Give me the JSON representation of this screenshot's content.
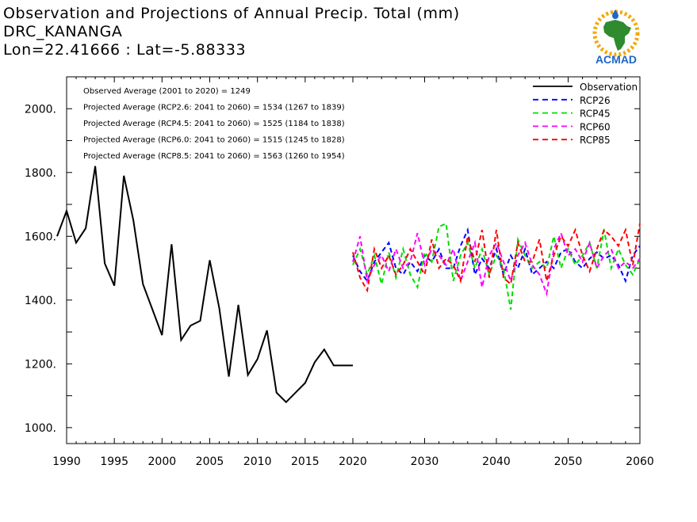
{
  "header": {
    "title_line1": "Observation and Projections of Annual Precip. Total (mm)",
    "title_line2": "DRC_KANANGA",
    "title_line3": "Lon=22.41666 : Lat=-5.88333"
  },
  "logo": {
    "text": "ACMAD",
    "icon": "africa-map-logo-icon"
  },
  "colors": {
    "observation": "#000000",
    "rcp26": "#0000ff",
    "rcp45": "#00dd00",
    "rcp60": "#ff00ff",
    "rcp85": "#ff0000"
  },
  "chart_data": {
    "type": "line",
    "xlim": [
      1990,
      2060
    ],
    "ylim": [
      950,
      2100
    ],
    "x_tick_labels": [
      {
        "x": 1990,
        "label": "1990"
      },
      {
        "x": 1995,
        "label": "1995"
      },
      {
        "x": 2000,
        "label": "2000"
      },
      {
        "x": 2005,
        "label": "2005"
      },
      {
        "x": 2010,
        "label": "2010"
      },
      {
        "x": 2015,
        "label": "2015"
      },
      {
        "x": 2020,
        "label": "2020"
      },
      {
        "x": 2030,
        "label": "2030"
      },
      {
        "x": 2040,
        "label": "2040"
      },
      {
        "x": 2050,
        "label": "2050"
      },
      {
        "x": 2060,
        "label": "2060"
      }
    ],
    "y_tick_labels": [
      {
        "y": 1000,
        "label": "1000."
      },
      {
        "y": 1200,
        "label": "1200."
      },
      {
        "y": 1400,
        "label": "1400."
      },
      {
        "y": 1600,
        "label": "1600."
      },
      {
        "y": 1800,
        "label": "1800."
      },
      {
        "y": 2000,
        "label": "2000."
      }
    ],
    "annotations": [
      "Observed Average (2001 to 2020) = 1249",
      "Projected Average (RCP2.6: 2041 to 2060) = 1534 (1267 to 1839)",
      "Projected Average (RCP4.5: 2041 to 2060) = 1525 (1184 to 1838)",
      "Projected Average (RCP6.0: 2041 to 2060) = 1515 (1245 to 1828)",
      "Projected Average (RCP8.5: 2041 to 2060) = 1563 (1260 to 1954)"
    ],
    "legend_position": "top-right",
    "series": [
      {
        "name": "Observation",
        "style": "solid",
        "color": "#000000",
        "x": [
          1989,
          1990,
          1991,
          1992,
          1993,
          1994,
          1995,
          1996,
          1997,
          1998,
          1999,
          2000,
          2001,
          2002,
          2003,
          2004,
          2005,
          2006,
          2007,
          2008,
          2009,
          2010,
          2011,
          2012,
          2013,
          2014,
          2015,
          2016,
          2017,
          2018,
          2019,
          2020
        ],
        "y": [
          1600,
          1680,
          1580,
          1625,
          1820,
          1515,
          1445,
          1790,
          1650,
          1450,
          1370,
          1290,
          1575,
          1275,
          1320,
          1335,
          1525,
          1375,
          1160,
          1385,
          1165,
          1215,
          1305,
          1110,
          1080,
          1110,
          1140,
          1205,
          1245,
          1195,
          1195,
          1195
        ]
      },
      {
        "name": "RCP26",
        "style": "dashed",
        "color": "#0000ff",
        "x": [
          2020,
          2021,
          2022,
          2023,
          2024,
          2025,
          2026,
          2027,
          2028,
          2029,
          2030,
          2031,
          2032,
          2033,
          2034,
          2035,
          2036,
          2037,
          2038,
          2039,
          2040,
          2041,
          2042,
          2043,
          2044,
          2045,
          2046,
          2047,
          2048,
          2049,
          2050,
          2051,
          2052,
          2053,
          2054,
          2055,
          2056,
          2057,
          2058,
          2059,
          2060
        ],
        "y": [
          1540,
          1490,
          1460,
          1520,
          1550,
          1580,
          1500,
          1480,
          1520,
          1490,
          1540,
          1520,
          1560,
          1500,
          1500,
          1570,
          1620,
          1480,
          1530,
          1500,
          1560,
          1480,
          1540,
          1500,
          1560,
          1480,
          1500,
          1520,
          1500,
          1550,
          1560,
          1520,
          1500,
          1530,
          1550,
          1530,
          1540,
          1510,
          1460,
          1540,
          1570
        ]
      },
      {
        "name": "RCP45",
        "style": "dashed",
        "color": "#00dd00",
        "x": [
          2020,
          2021,
          2022,
          2023,
          2024,
          2025,
          2026,
          2027,
          2028,
          2029,
          2030,
          2031,
          2032,
          2033,
          2034,
          2035,
          2036,
          2037,
          2038,
          2039,
          2040,
          2041,
          2042,
          2043,
          2044,
          2045,
          2046,
          2047,
          2048,
          2049,
          2050,
          2051,
          2052,
          2053,
          2054,
          2055,
          2056,
          2057,
          2058,
          2059,
          2060
        ],
        "y": [
          1510,
          1560,
          1480,
          1540,
          1450,
          1550,
          1470,
          1560,
          1480,
          1440,
          1550,
          1520,
          1630,
          1640,
          1460,
          1540,
          1580,
          1500,
          1560,
          1480,
          1540,
          1500,
          1370,
          1590,
          1540,
          1500,
          1520,
          1500,
          1600,
          1500,
          1560,
          1510,
          1540,
          1580,
          1500,
          1620,
          1500,
          1560,
          1510,
          1480,
          1530
        ]
      },
      {
        "name": "RCP60",
        "style": "dashed",
        "color": "#ff00ff",
        "x": [
          2020,
          2021,
          2022,
          2023,
          2024,
          2025,
          2026,
          2027,
          2028,
          2029,
          2030,
          2031,
          2032,
          2033,
          2034,
          2035,
          2036,
          2037,
          2038,
          2039,
          2040,
          2041,
          2042,
          2043,
          2044,
          2045,
          2046,
          2047,
          2048,
          2049,
          2050,
          2051,
          2052,
          2053,
          2054,
          2055,
          2056,
          2057,
          2058,
          2059,
          2060
        ],
        "y": [
          1520,
          1600,
          1460,
          1510,
          1540,
          1490,
          1560,
          1500,
          1520,
          1610,
          1510,
          1560,
          1540,
          1510,
          1560,
          1460,
          1520,
          1580,
          1440,
          1540,
          1580,
          1520,
          1460,
          1540,
          1580,
          1510,
          1480,
          1420,
          1560,
          1610,
          1540,
          1560,
          1520,
          1580,
          1500,
          1540,
          1560,
          1500,
          1520,
          1500,
          1530
        ]
      },
      {
        "name": "RCP85",
        "style": "dashed",
        "color": "#ff0000",
        "x": [
          2020,
          2021,
          2022,
          2023,
          2024,
          2025,
          2026,
          2027,
          2028,
          2029,
          2030,
          2031,
          2032,
          2033,
          2034,
          2035,
          2036,
          2037,
          2038,
          2039,
          2040,
          2041,
          2042,
          2043,
          2044,
          2045,
          2046,
          2047,
          2048,
          2049,
          2050,
          2051,
          2052,
          2053,
          2054,
          2055,
          2056,
          2057,
          2058,
          2059,
          2060
        ],
        "y": [
          1550,
          1470,
          1430,
          1560,
          1500,
          1540,
          1480,
          1510,
          1560,
          1520,
          1480,
          1590,
          1500,
          1530,
          1510,
          1460,
          1600,
          1520,
          1620,
          1470,
          1620,
          1470,
          1450,
          1580,
          1520,
          1520,
          1590,
          1460,
          1540,
          1600,
          1570,
          1620,
          1540,
          1490,
          1560,
          1620,
          1600,
          1570,
          1620,
          1510,
          1640
        ]
      }
    ]
  }
}
